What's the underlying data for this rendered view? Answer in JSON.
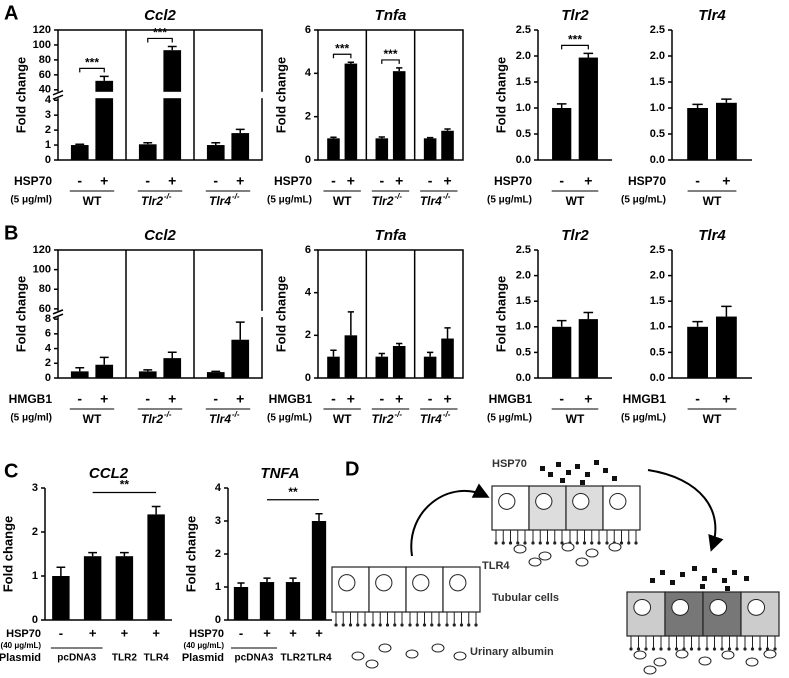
{
  "chart_data": [
    {
      "type": "bar",
      "panel": "A",
      "title": "Ccl2",
      "ylabel": "Fold change",
      "ylim": [
        0,
        120
      ],
      "ybreak": [
        4,
        40
      ],
      "yticks": [
        0,
        1,
        2,
        3,
        4,
        40,
        60,
        80,
        100,
        120
      ],
      "treatment": "HSP70",
      "dose": "(5 μg/ml)",
      "signs": [
        "-",
        "+"
      ],
      "groups": [
        {
          "label": "WT"
        },
        {
          "label": "Tlr2",
          "sup": "-/-"
        },
        {
          "label": "Tlr4",
          "sup": "-/-"
        }
      ],
      "values": [
        [
          1,
          52
        ],
        [
          1.05,
          93
        ],
        [
          1,
          1.8
        ]
      ],
      "errors": [
        [
          0.05,
          6
        ],
        [
          0.1,
          5
        ],
        [
          0.15,
          0.25
        ]
      ],
      "stars": [
        "***",
        "***",
        null
      ],
      "color": "#000000",
      "frame": true
    },
    {
      "type": "bar",
      "title": "Tnfa",
      "ylabel": "Fold change",
      "ylim": [
        0,
        6
      ],
      "yticks": [
        0,
        2,
        4,
        6
      ],
      "treatment": "HSP70",
      "dose": "(5 μg/mL)",
      "signs": [
        "-",
        "+"
      ],
      "groups": [
        {
          "label": "WT"
        },
        {
          "label": "Tlr2",
          "sup": "-/-"
        },
        {
          "label": "Tlr4",
          "sup": "-/-"
        }
      ],
      "values": [
        [
          1,
          4.45
        ],
        [
          1,
          4.1
        ],
        [
          1,
          1.35
        ]
      ],
      "errors": [
        [
          0.05,
          0.06
        ],
        [
          0.06,
          0.15
        ],
        [
          0.03,
          0.08
        ]
      ],
      "stars": [
        "***",
        "***",
        null
      ],
      "color": "#000000",
      "frame": true
    },
    {
      "type": "bar",
      "title": "Tlr2",
      "ylabel": "Fold change",
      "ylim": [
        0,
        2.5
      ],
      "yticks": [
        {
          "value": 0,
          "label": "0.0"
        },
        {
          "value": 0.5,
          "label": "0.5"
        },
        {
          "value": 1,
          "label": "1.0"
        },
        {
          "value": 1.5,
          "label": "1.5"
        },
        {
          "value": 2,
          "label": "2.0"
        },
        {
          "value": 2.5,
          "label": "2.5"
        }
      ],
      "treatment": "HSP70",
      "dose": "(5 μg/mL)",
      "signs": [
        "-",
        "+"
      ],
      "groups": [
        {
          "label": "WT"
        }
      ],
      "values": [
        [
          1.0,
          1.97
        ]
      ],
      "errors": [
        [
          0.08,
          0.08
        ]
      ],
      "stars": [
        "***"
      ],
      "color": "#000000",
      "frame": false
    },
    {
      "type": "bar",
      "title": "Tlr4",
      "ylim": [
        0,
        2.5
      ],
      "yticks": [
        {
          "value": 0,
          "label": "0.0"
        },
        {
          "value": 0.5,
          "label": "0.5"
        },
        {
          "value": 1,
          "label": "1.0"
        },
        {
          "value": 1.5,
          "label": "1.5"
        },
        {
          "value": 2,
          "label": "2.0"
        },
        {
          "value": 2.5,
          "label": "2.5"
        }
      ],
      "treatment": "HSP70",
      "dose": "(5 μg/mL)",
      "signs": [
        "-",
        "+"
      ],
      "groups": [
        {
          "label": "WT"
        }
      ],
      "values": [
        [
          1.0,
          1.1
        ]
      ],
      "errors": [
        [
          0.07,
          0.07
        ]
      ],
      "color": "#000000",
      "frame": false
    },
    {
      "type": "bar",
      "panel": "B",
      "title": "Ccl2",
      "ylabel": "Fold change",
      "ylim": [
        0,
        120
      ],
      "ybreak": [
        8,
        60
      ],
      "yticks": [
        0,
        2,
        4,
        6,
        8,
        60,
        80,
        100,
        120
      ],
      "treatment": "HMGB1",
      "dose": "(5 μg/ml)",
      "signs": [
        "-",
        "+"
      ],
      "groups": [
        {
          "label": "WT"
        },
        {
          "label": "Tlr2",
          "sup": "-/-"
        },
        {
          "label": "Tlr4",
          "sup": "-/-"
        }
      ],
      "values": [
        [
          0.9,
          1.8
        ],
        [
          0.9,
          2.7
        ],
        [
          0.8,
          5.2
        ]
      ],
      "errors": [
        [
          0.5,
          1.0
        ],
        [
          0.2,
          0.8
        ],
        [
          0.1,
          2.4
        ]
      ],
      "color": "#000000",
      "frame": true
    },
    {
      "type": "bar",
      "title": "Tnfa",
      "ylabel": "Fold change",
      "ylim": [
        0,
        6
      ],
      "yticks": [
        0,
        2,
        4,
        6
      ],
      "treatment": "HMGB1",
      "dose": "(5 μg/mL)",
      "signs": [
        "-",
        "+"
      ],
      "groups": [
        {
          "label": "WT"
        },
        {
          "label": "Tlr2",
          "sup": "-/-"
        },
        {
          "label": "Tlr4",
          "sup": "-/-"
        }
      ],
      "values": [
        [
          1.0,
          2.0
        ],
        [
          1.0,
          1.5
        ],
        [
          1.0,
          1.85
        ]
      ],
      "errors": [
        [
          0.3,
          1.1
        ],
        [
          0.15,
          0.12
        ],
        [
          0.2,
          0.5
        ]
      ],
      "color": "#000000",
      "frame": true
    },
    {
      "type": "bar",
      "title": "Tlr2",
      "ylabel": "Fold change",
      "ylim": [
        0,
        2.5
      ],
      "yticks": [
        {
          "value": 0,
          "label": "0.0"
        },
        {
          "value": 0.5,
          "label": "0.5"
        },
        {
          "value": 1,
          "label": "1.0"
        },
        {
          "value": 1.5,
          "label": "1.5"
        },
        {
          "value": 2,
          "label": "2.0"
        },
        {
          "value": 2.5,
          "label": "2.5"
        }
      ],
      "treatment": "HMGB1",
      "dose": "(5 μg/mL)",
      "signs": [
        "-",
        "+"
      ],
      "groups": [
        {
          "label": "WT"
        }
      ],
      "values": [
        [
          1.0,
          1.15
        ]
      ],
      "errors": [
        [
          0.12,
          0.13
        ]
      ],
      "color": "#000000",
      "frame": false
    },
    {
      "type": "bar",
      "title": "Tlr4",
      "ylim": [
        0,
        2.5
      ],
      "yticks": [
        {
          "value": 0,
          "label": "0.0"
        },
        {
          "value": 0.5,
          "label": "0.5"
        },
        {
          "value": 1,
          "label": "1.0"
        },
        {
          "value": 1.5,
          "label": "1.5"
        },
        {
          "value": 2,
          "label": "2.0"
        },
        {
          "value": 2.5,
          "label": "2.5"
        }
      ],
      "treatment": "HMGB1",
      "dose": "(5 μg/mL)",
      "signs": [
        "-",
        "+"
      ],
      "groups": [
        {
          "label": "WT"
        }
      ],
      "values": [
        [
          1.0,
          1.2
        ]
      ],
      "errors": [
        [
          0.1,
          0.2
        ]
      ],
      "color": "#000000",
      "frame": false
    },
    {
      "type": "bar",
      "panel": "C",
      "title": "CCL2",
      "ylabel": "Fold change",
      "ylim": [
        0,
        3
      ],
      "yticks": [
        0,
        1,
        2,
        3
      ],
      "treatment": "HSP70",
      "dose": "(40 μg/mL)",
      "treatment_signs": [
        "-",
        "+",
        "+",
        "+"
      ],
      "plasmid_label": "Plasmid",
      "plasmids": [
        "pcDNA3",
        "TLR2",
        "TLR4"
      ],
      "values": [
        1.0,
        1.45,
        1.45,
        2.4
      ],
      "errors": [
        0.2,
        0.08,
        0.08,
        0.18
      ],
      "significance": "**",
      "color": "#000000"
    },
    {
      "type": "bar",
      "title": "TNFA",
      "ylabel": "Fold change",
      "ylim": [
        0,
        4
      ],
      "yticks": [
        0,
        1,
        2,
        3,
        4
      ],
      "treatment": "HSP70",
      "dose": "(40 μg/mL)",
      "treatment_signs": [
        "-",
        "+",
        "+",
        "+"
      ],
      "plasmid_label": "Plasmid",
      "plasmids": [
        "pcDNA3",
        "TLR2",
        "TLR4"
      ],
      "values": [
        1.0,
        1.15,
        1.15,
        3.0
      ],
      "errors": [
        0.12,
        0.12,
        0.12,
        0.22
      ],
      "significance": "**",
      "color": "#000000"
    }
  ],
  "diagram": {
    "panel": "D",
    "ligand": "HSP70",
    "receptor": "TLR4",
    "cells": "Tubular cells",
    "albumin": "Urinary albumin"
  }
}
